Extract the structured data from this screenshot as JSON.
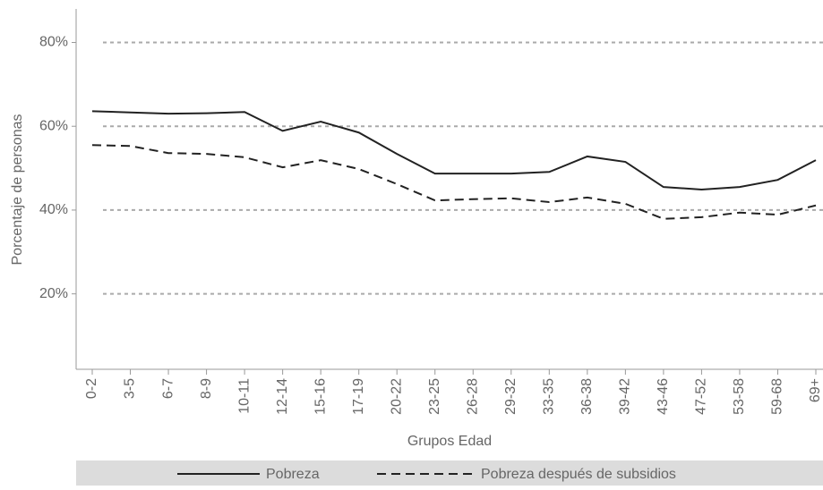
{
  "chart_data": {
    "type": "line",
    "x_label": "Grupos Edad",
    "y_label": "Porcentaje de personas",
    "categories": [
      "0-2",
      "3-5",
      "6-7",
      "8-9",
      "10-11",
      "12-14",
      "15-16",
      "17-19",
      "20-22",
      "23-25",
      "26-28",
      "29-32",
      "33-35",
      "36-38",
      "39-42",
      "43-46",
      "47-52",
      "53-58",
      "59-68",
      "69+"
    ],
    "series": [
      {
        "name": "Pobreza",
        "color": "#222222",
        "dash": "solid",
        "values": [
          63.6,
          63.3,
          63.0,
          63.1,
          63.4,
          58.9,
          61.1,
          58.5,
          53.4,
          48.7,
          48.7,
          48.7,
          49.1,
          52.8,
          51.5,
          45.5,
          44.9,
          45.5,
          47.2,
          51.9
        ]
      },
      {
        "name": "Pobreza después de subsidios",
        "color": "#222222",
        "dash": "dashed",
        "values": [
          55.5,
          55.3,
          53.6,
          53.4,
          52.6,
          50.2,
          51.9,
          49.8,
          46.2,
          42.3,
          42.6,
          42.8,
          41.9,
          43.0,
          41.5,
          37.9,
          38.3,
          39.4,
          38.9,
          41.1
        ]
      }
    ],
    "ylim": [
      2,
      88
    ],
    "yticks": [
      {
        "value": 20,
        "label": "20%"
      },
      {
        "value": 40,
        "label": "40%"
      },
      {
        "value": 60,
        "label": "60%"
      },
      {
        "value": 80,
        "label": "80%"
      }
    ],
    "grid": true,
    "legend": "bottom"
  }
}
